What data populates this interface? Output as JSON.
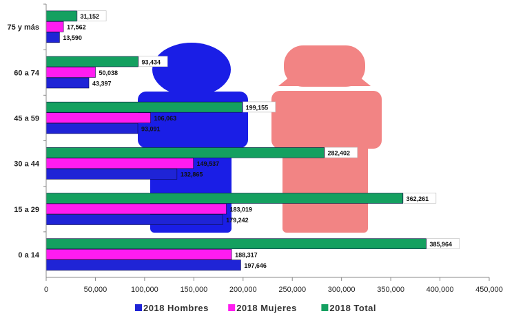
{
  "chart_data": {
    "type": "bar",
    "orientation": "horizontal",
    "categories": [
      "0 a 14",
      "15 a 29",
      "30 a 44",
      "45 a 59",
      "60 a 74",
      "75 y más"
    ],
    "series": [
      {
        "name": "2018 Hombres",
        "color": "#1f24d6",
        "values": [
          197646,
          179242,
          132865,
          93091,
          43397,
          13590
        ],
        "labels": [
          "197,646",
          "179,242",
          "132,865",
          "93,091",
          "43,397",
          "13,590"
        ]
      },
      {
        "name": "2018 Mujeres",
        "color": "#ff1cf0",
        "values": [
          188317,
          183019,
          149537,
          106063,
          50038,
          17562
        ],
        "labels": [
          "188,317",
          "183,019",
          "149,537",
          "106,063",
          "50,038",
          "17,562"
        ]
      },
      {
        "name": "2018 Total",
        "color": "#14a060",
        "values": [
          385964,
          362261,
          282402,
          199155,
          93434,
          31152
        ],
        "labels": [
          "385,964",
          "362,261",
          "282,402",
          "199,155",
          "93,434",
          "31,152"
        ]
      }
    ],
    "xlim": [
      0,
      450000
    ],
    "xticks": [
      0,
      50000,
      100000,
      150000,
      200000,
      250000,
      300000,
      350000,
      400000,
      450000
    ],
    "xtick_labels": [
      "0",
      "50,000",
      "100,000",
      "150,000",
      "200,000",
      "250,000",
      "300,000",
      "350,000",
      "400,000",
      "450,000"
    ],
    "legend_position": "bottom",
    "grid": false,
    "background_figures": [
      {
        "icon": "male-figure-icon",
        "color": "#1a1ee6"
      },
      {
        "icon": "female-figure-icon",
        "color": "#f28484"
      }
    ]
  }
}
